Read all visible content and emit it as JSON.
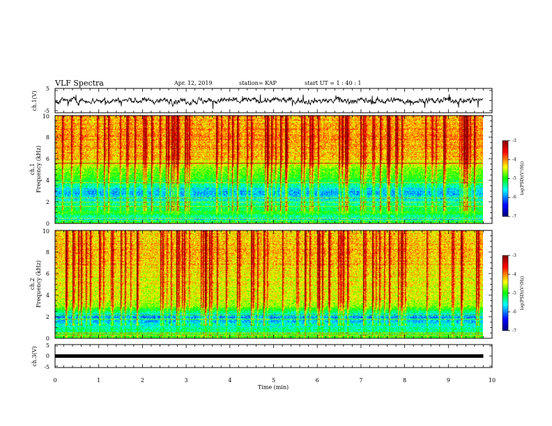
{
  "header": {
    "title": "VLF Spectra",
    "date": "Apr. 12, 2019",
    "station": "station= KAP",
    "start": "start  UT =   1 : 40 : 1"
  },
  "axes": {
    "x_label": "Time  (min)",
    "ch1_wave_label": "ch.1(V)",
    "ch3_wave_label": "ch.3(V)",
    "spec1_label_line1": "ch.1",
    "spec2_label_line1": "ch.2",
    "spec_label_line2": "Frequency (kHz)",
    "colorbar_label": "log(PSD)(V²/Hz)"
  },
  "colors": {
    "colormap": [
      "#00007f",
      "#0000ff",
      "#00ffff",
      "#00ff00",
      "#ffff00",
      "#ff0000",
      "#7f0000"
    ],
    "trace": "#000000"
  },
  "chart_data": [
    {
      "type": "line",
      "name": "ch.1 waveform",
      "xlabel": "Time  (min)",
      "ylabel": "ch.1(V)",
      "xlim": [
        0,
        10
      ],
      "ylim": [
        -5,
        5
      ],
      "y_ticks": [
        "5",
        "-5"
      ],
      "description_values": {
        "x_end": 9.8,
        "mean": 0,
        "typical_amplitude": 1.5
      }
    },
    {
      "type": "heatmap",
      "name": "ch.1 spectrogram",
      "xlabel": "Time  (min)",
      "ylabel": "Frequency (kHz)",
      "xlim": [
        0,
        10
      ],
      "ylim": [
        0,
        10
      ],
      "x_end": 9.8,
      "y_ticks": [
        "0",
        "2",
        "4",
        "6",
        "8",
        "10"
      ],
      "colorbar": {
        "range": [
          -7,
          -3
        ],
        "ticks": [
          "-3",
          "-4",
          "-5",
          "-6",
          "-7"
        ],
        "label": "log(PSD)(V²/Hz)"
      },
      "profile": [
        [
          0,
          -4.6
        ],
        [
          0.4,
          -5.8
        ],
        [
          1.0,
          -5.0
        ],
        [
          2.0,
          -5.6
        ],
        [
          3.0,
          -5.9
        ],
        [
          4.0,
          -5.1
        ],
        [
          5.0,
          -4.8
        ],
        [
          6.0,
          -4.3
        ],
        [
          8.0,
          -4.1
        ],
        [
          10.0,
          -4.2
        ]
      ],
      "tones_khz": [
        5.6,
        3.8,
        2.4,
        2.0,
        1.6,
        0.5,
        0.3
      ]
    },
    {
      "type": "heatmap",
      "name": "ch.2 spectrogram",
      "xlabel": "Time  (min)",
      "ylabel": "Frequency (kHz)",
      "xlim": [
        0,
        10
      ],
      "ylim": [
        0,
        10
      ],
      "x_end": 9.8,
      "y_ticks": [
        "0",
        "2",
        "4",
        "6",
        "8",
        "10"
      ],
      "colorbar": {
        "range": [
          -7,
          -3
        ],
        "ticks": [
          "-3",
          "-4",
          "-5",
          "-6",
          "-7"
        ],
        "label": "log(PSD)(V²/Hz)"
      },
      "profile": [
        [
          0,
          -4.8
        ],
        [
          0.4,
          -5.2
        ],
        [
          1.0,
          -5.5
        ],
        [
          2.0,
          -6.0
        ],
        [
          3.0,
          -4.7
        ],
        [
          4.0,
          -4.5
        ],
        [
          6.0,
          -4.4
        ],
        [
          8.0,
          -4.2
        ],
        [
          10.0,
          -4.3
        ]
      ],
      "tones_khz": [
        2.2,
        1.8,
        0.5,
        0.3
      ]
    },
    {
      "type": "line",
      "name": "ch.3 waveform",
      "xlabel": "Time  (min)",
      "ylabel": "ch.3(V)",
      "xlim": [
        0,
        10
      ],
      "ylim": [
        -5,
        5
      ],
      "y_ticks": [
        "5",
        "0",
        "-5"
      ],
      "constant_value": 0,
      "x_end": 9.8
    },
    {
      "type": "axis",
      "name": "time axis",
      "x_ticks": [
        "0",
        "1",
        "2",
        "3",
        "4",
        "5",
        "6",
        "7",
        "8",
        "9",
        "10"
      ]
    }
  ]
}
